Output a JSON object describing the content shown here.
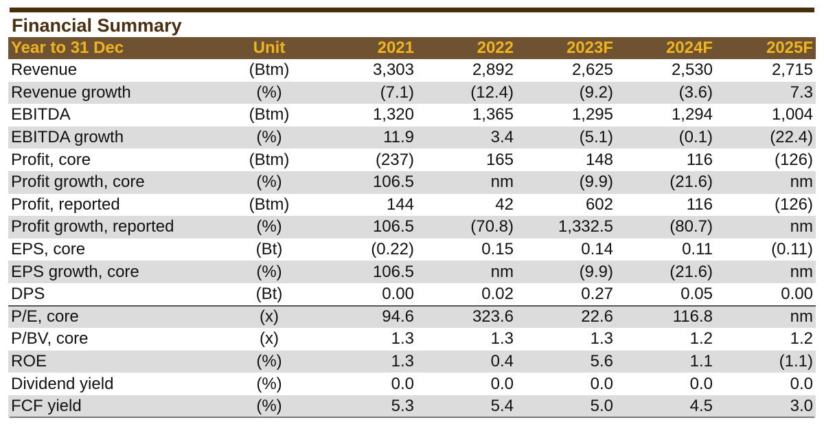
{
  "title": "Financial Summary",
  "header": {
    "label": "Year to 31 Dec",
    "unit": "Unit",
    "years": [
      "2021",
      "2022",
      "2023F",
      "2024F",
      "2025F"
    ]
  },
  "rows": [
    {
      "label": "Revenue",
      "unit": "(Btm)",
      "values": [
        "3,303",
        "2,892",
        "2,625",
        "2,530",
        "2,715"
      ]
    },
    {
      "label": "Revenue growth",
      "unit": "(%)",
      "values": [
        "(7.1)",
        "(12.4)",
        "(9.2)",
        "(3.6)",
        "7.3"
      ]
    },
    {
      "label": "EBITDA",
      "unit": "(Btm)",
      "values": [
        "1,320",
        "1,365",
        "1,295",
        "1,294",
        "1,004"
      ]
    },
    {
      "label": "EBITDA growth",
      "unit": "(%)",
      "values": [
        "11.9",
        "3.4",
        "(5.1)",
        "(0.1)",
        "(22.4)"
      ]
    },
    {
      "label": "Profit, core",
      "unit": "(Btm)",
      "values": [
        "(237)",
        "165",
        "148",
        "116",
        "(126)"
      ]
    },
    {
      "label": "Profit growth, core",
      "unit": "(%)",
      "values": [
        "106.5",
        "nm",
        "(9.9)",
        "(21.6)",
        "nm"
      ]
    },
    {
      "label": "Profit, reported",
      "unit": "(Btm)",
      "values": [
        "144",
        "42",
        "602",
        "116",
        "(126)"
      ]
    },
    {
      "label": "Profit growth, reported",
      "unit": "(%)",
      "values": [
        "106.5",
        "(70.8)",
        "1,332.5",
        "(80.7)",
        "nm"
      ]
    },
    {
      "label": "EPS, core",
      "unit": "(Bt)",
      "values": [
        "(0.22)",
        "0.15",
        "0.14",
        "0.11",
        "(0.11)"
      ]
    },
    {
      "label": "EPS growth, core",
      "unit": "(%)",
      "values": [
        "106.5",
        "nm",
        "(9.9)",
        "(21.6)",
        "nm"
      ]
    },
    {
      "label": "DPS",
      "unit": "(Bt)",
      "values": [
        "0.00",
        "0.02",
        "0.27",
        "0.05",
        "0.00"
      ]
    },
    {
      "label": "P/E, core",
      "unit": "(x)",
      "values": [
        "94.6",
        "323.6",
        "22.6",
        "116.8",
        "nm"
      ]
    },
    {
      "label": "P/BV, core",
      "unit": "(x)",
      "values": [
        "1.3",
        "1.3",
        "1.3",
        "1.2",
        "1.2"
      ]
    },
    {
      "label": "ROE",
      "unit": "(%)",
      "values": [
        "1.3",
        "0.4",
        "5.6",
        "1.1",
        "(1.1)"
      ]
    },
    {
      "label": "Dividend yield",
      "unit": "(%)",
      "values": [
        "0.0",
        "0.0",
        "0.0",
        "0.0",
        "0.0"
      ]
    },
    {
      "label": "FCF yield",
      "unit": "(%)",
      "values": [
        "5.3",
        "5.4",
        "5.0",
        "4.5",
        "3.0"
      ]
    }
  ],
  "colors": {
    "header_bg": "#6e5232",
    "header_text": "#f0b41e",
    "title_text": "#4a2e10",
    "alt_row_bg": "#dcdcdc"
  }
}
